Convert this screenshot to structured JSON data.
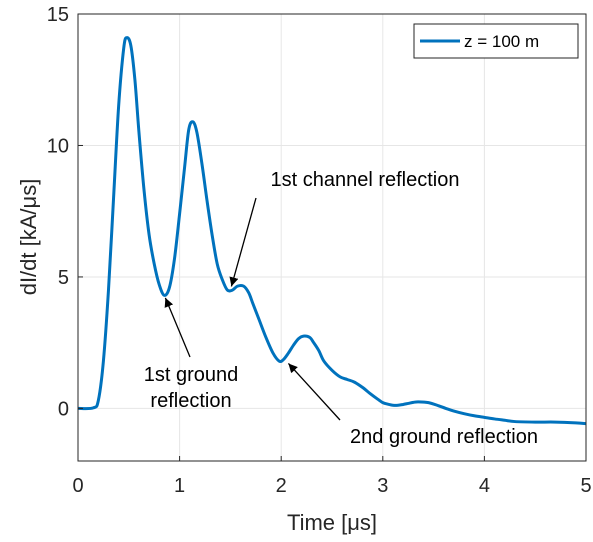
{
  "chart_data": {
    "type": "line",
    "xlabel": "Time [μs]",
    "ylabel": "dI/dt [kA/μs]",
    "xlim": [
      0,
      5
    ],
    "ylim": [
      -2,
      15
    ],
    "xticks": [
      "0",
      "1",
      "2",
      "3",
      "4",
      "5"
    ],
    "yticks": [
      "0",
      "5",
      "10",
      "15"
    ],
    "grid": true,
    "legend_position": "top-right",
    "colors": {
      "series": "#0072BD",
      "grid": "#e6e6e6",
      "axis": "#262626"
    },
    "series": [
      {
        "name": "z = 100 m",
        "x": [
          0,
          0.15,
          0.2,
          0.25,
          0.3,
          0.35,
          0.4,
          0.45,
          0.48,
          0.52,
          0.56,
          0.6,
          0.65,
          0.7,
          0.75,
          0.8,
          0.85,
          0.9,
          0.95,
          1.0,
          1.05,
          1.09,
          1.13,
          1.17,
          1.22,
          1.27,
          1.32,
          1.37,
          1.42,
          1.47,
          1.52,
          1.57,
          1.63,
          1.68,
          1.72,
          1.78,
          1.85,
          1.92,
          1.98,
          2.02,
          2.07,
          2.12,
          2.17,
          2.22,
          2.28,
          2.32,
          2.37,
          2.42,
          2.5,
          2.58,
          2.65,
          2.72,
          2.8,
          2.88,
          2.95,
          3.0,
          3.05,
          3.1,
          3.15,
          3.2,
          3.25,
          3.3,
          3.35,
          3.45,
          3.55,
          3.62,
          3.7,
          3.8,
          3.9,
          4.0,
          4.1,
          4.2,
          4.3,
          4.5,
          4.7,
          4.9,
          5.0
        ],
        "values": [
          0,
          0.02,
          0.3,
          1.8,
          4.5,
          8.0,
          11.5,
          13.7,
          14.1,
          13.8,
          12.5,
          10.5,
          8.3,
          6.6,
          5.5,
          4.7,
          4.3,
          4.6,
          5.7,
          7.4,
          9.2,
          10.6,
          10.9,
          10.5,
          9.3,
          7.9,
          6.6,
          5.5,
          4.9,
          4.5,
          4.5,
          4.65,
          4.65,
          4.4,
          4.0,
          3.4,
          2.7,
          2.1,
          1.8,
          1.85,
          2.1,
          2.4,
          2.65,
          2.75,
          2.7,
          2.5,
          2.2,
          1.8,
          1.45,
          1.2,
          1.1,
          1.0,
          0.8,
          0.55,
          0.35,
          0.22,
          0.16,
          0.12,
          0.12,
          0.15,
          0.19,
          0.23,
          0.25,
          0.22,
          0.1,
          0.0,
          -0.1,
          -0.2,
          -0.28,
          -0.34,
          -0.4,
          -0.45,
          -0.5,
          -0.52,
          -0.52,
          -0.55,
          -0.58
        ]
      }
    ],
    "annotations": [
      {
        "lines": [
          "1st channel reflection"
        ],
        "point": [
          1.5,
          4.5
        ]
      },
      {
        "lines": [
          "1st ground",
          "reflection"
        ],
        "point": [
          0.85,
          4.3
        ]
      },
      {
        "lines": [
          "2nd ground reflection"
        ],
        "point": [
          2.05,
          1.8
        ]
      }
    ]
  }
}
